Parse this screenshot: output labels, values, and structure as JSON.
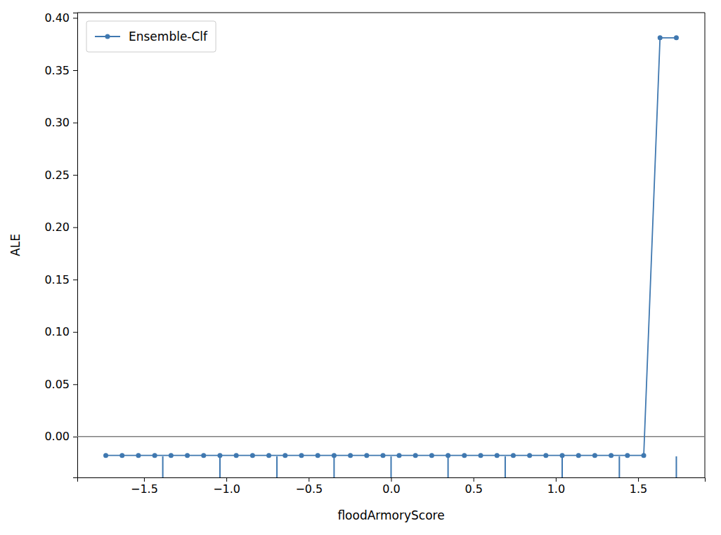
{
  "chart_data": {
    "type": "line",
    "x_label": "floodArmoryScore",
    "y_label": "ALE",
    "x": [
      -1.732,
      -1.633,
      -1.534,
      -1.435,
      -1.336,
      -1.237,
      -1.138,
      -1.039,
      -0.94,
      -0.841,
      -0.742,
      -0.643,
      -0.544,
      -0.445,
      -0.346,
      -0.247,
      -0.148,
      -0.049,
      0.049,
      0.148,
      0.247,
      0.346,
      0.445,
      0.544,
      0.643,
      0.742,
      0.841,
      0.94,
      1.039,
      1.138,
      1.237,
      1.336,
      1.435,
      1.534,
      1.633,
      1.732
    ],
    "series": [
      {
        "name": "Ensemble-Clf",
        "color": "#3f78b0",
        "marker": "circle",
        "line_style": "solid",
        "values": [
          -0.018,
          -0.018,
          -0.018,
          -0.018,
          -0.018,
          -0.018,
          -0.018,
          -0.018,
          -0.018,
          -0.018,
          -0.018,
          -0.018,
          -0.018,
          -0.018,
          -0.018,
          -0.018,
          -0.018,
          -0.018,
          -0.018,
          -0.018,
          -0.018,
          -0.018,
          -0.018,
          -0.018,
          -0.018,
          -0.018,
          -0.018,
          -0.018,
          -0.018,
          -0.018,
          -0.018,
          -0.018,
          -0.018,
          -0.018,
          0.381,
          0.381
        ]
      }
    ],
    "hlines": [
      0
    ],
    "rug": [
      -1.386,
      -1.039,
      -0.693,
      -0.346,
      0,
      0.346,
      0.693,
      1.039,
      1.386,
      1.732
    ],
    "xlim": [
      -1.905,
      1.905
    ],
    "xticks": [
      {
        "value": -1.5,
        "label": "−1.5"
      },
      {
        "value": -1.0,
        "label": "−1.0"
      },
      {
        "value": -0.5,
        "label": "−0.5"
      },
      {
        "value": 0.0,
        "label": "0.0"
      },
      {
        "value": 0.5,
        "label": "0.5"
      },
      {
        "value": 1.0,
        "label": "1.0"
      },
      {
        "value": 1.5,
        "label": "1.5"
      }
    ],
    "ylim": [
      -0.039,
      0.405
    ],
    "yticks": [
      {
        "value": 0.0,
        "label": "0.00"
      },
      {
        "value": 0.05,
        "label": "0.05"
      },
      {
        "value": 0.1,
        "label": "0.10"
      },
      {
        "value": 0.15,
        "label": "0.15"
      },
      {
        "value": 0.2,
        "label": "0.20"
      },
      {
        "value": 0.25,
        "label": "0.25"
      },
      {
        "value": 0.3,
        "label": "0.30"
      },
      {
        "value": 0.35,
        "label": "0.35"
      },
      {
        "value": 0.4,
        "label": "0.40"
      }
    ],
    "legend": "upper-left",
    "grid": false
  }
}
